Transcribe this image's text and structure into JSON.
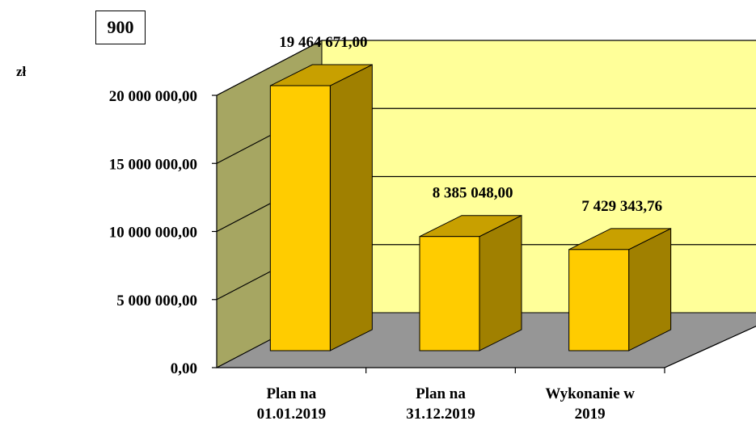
{
  "badge": "900",
  "chart_data": {
    "type": "bar",
    "ylabel": "zł",
    "ylim": [
      0,
      20000000
    ],
    "yticks": [
      0,
      5000000,
      10000000,
      15000000,
      20000000
    ],
    "ytick_labels": [
      "0,00",
      "5 000 000,00",
      "10 000 000,00",
      "15 000 000,00",
      "20 000 000,00"
    ],
    "categories": [
      [
        "Plan na",
        "01.01.2019"
      ],
      [
        "Plan na",
        "31.12.2019"
      ],
      [
        "Wykonanie w",
        "2019"
      ]
    ],
    "values": [
      19464671.0,
      8385048.0,
      7429343.76
    ],
    "data_labels": [
      "19 464 671,00",
      "8 385 048,00",
      "7 429 343,76"
    ],
    "grid": true,
    "colors": {
      "bar_front": "#FFCC00",
      "bar_side": "#A08000",
      "bar_top": "#C8A000",
      "back_wall": "#FFFF99",
      "side_wall": "#A6A662",
      "floor": "#969696"
    }
  }
}
